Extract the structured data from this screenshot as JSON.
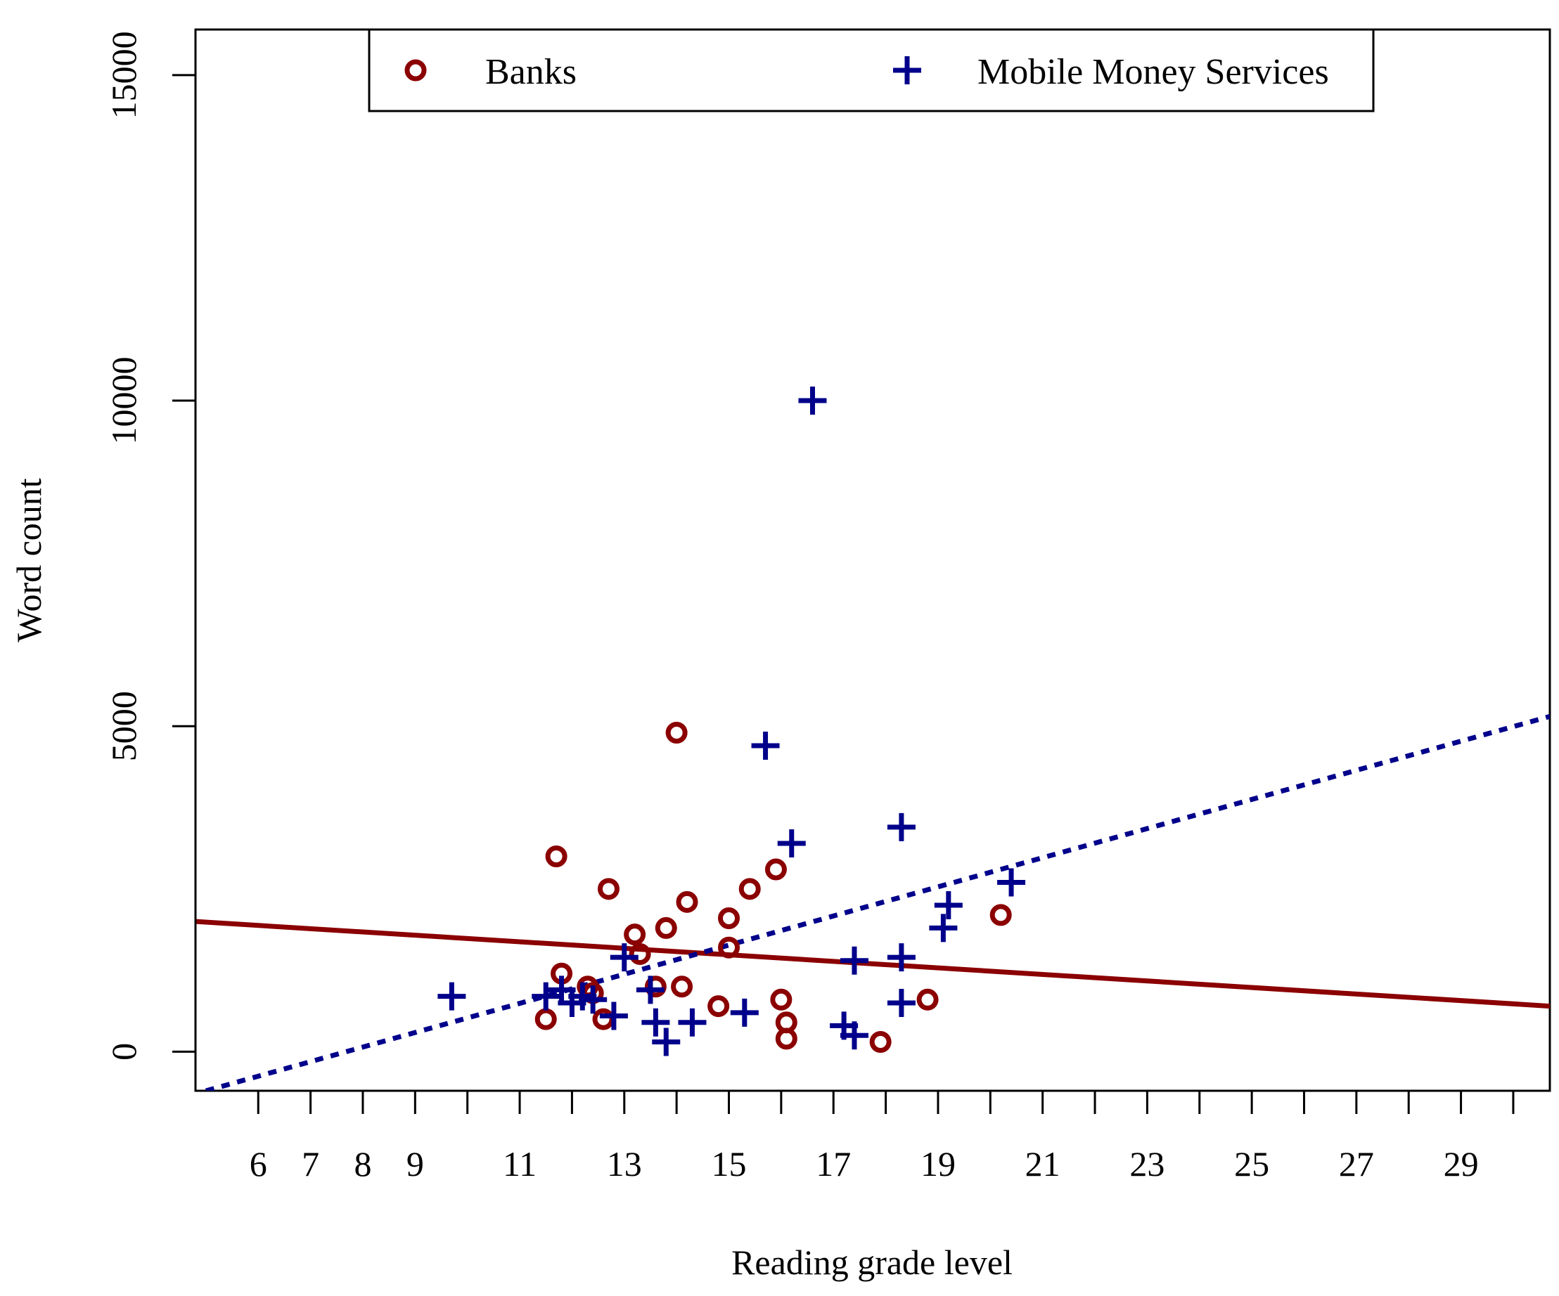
{
  "chart_data": {
    "type": "scatter",
    "title": "",
    "xlabel": "Reading grade level",
    "ylabel": "Word count",
    "xlim": [
      4.8,
      30.7
    ],
    "ylim": [
      -600,
      15700
    ],
    "x_ticks": [
      6,
      7,
      8,
      9,
      11,
      13,
      15,
      17,
      19,
      21,
      23,
      25,
      27,
      29
    ],
    "x_tick_marks": [
      6,
      7,
      8,
      9,
      10,
      11,
      12,
      13,
      14,
      15,
      16,
      17,
      18,
      19,
      20,
      21,
      22,
      23,
      24,
      25,
      26,
      27,
      28,
      29,
      30
    ],
    "y_ticks": [
      0,
      5000,
      10000,
      15000
    ],
    "y_tick_labels": [
      "0",
      "5000",
      "10000",
      "15000"
    ],
    "legend_position": "top",
    "series": [
      {
        "name": "Banks",
        "marker": "circle",
        "color": "#8B0000",
        "points": [
          [
            11.5,
            500
          ],
          [
            11.7,
            3000
          ],
          [
            11.8,
            1200
          ],
          [
            12.3,
            1000
          ],
          [
            12.4,
            900
          ],
          [
            12.6,
            500
          ],
          [
            12.7,
            2500
          ],
          [
            13.2,
            1800
          ],
          [
            13.3,
            1500
          ],
          [
            13.6,
            1000
          ],
          [
            13.8,
            1900
          ],
          [
            14.0,
            4900
          ],
          [
            14.1,
            1000
          ],
          [
            14.2,
            2300
          ],
          [
            14.8,
            700
          ],
          [
            15.0,
            1600
          ],
          [
            15.0,
            2050
          ],
          [
            15.4,
            2500
          ],
          [
            15.9,
            2800
          ],
          [
            16.0,
            800
          ],
          [
            16.1,
            450
          ],
          [
            16.1,
            200
          ],
          [
            17.9,
            150
          ],
          [
            18.8,
            800
          ],
          [
            20.2,
            2100
          ]
        ],
        "trend_line": {
          "style": "solid",
          "x": [
            4.8,
            30.7
          ],
          "y": [
            2000,
            700
          ]
        }
      },
      {
        "name": "Mobile Money Services",
        "marker": "plus",
        "color": "#00008B",
        "points": [
          [
            9.7,
            850
          ],
          [
            11.5,
            850
          ],
          [
            11.8,
            950
          ],
          [
            12.0,
            750
          ],
          [
            12.2,
            850
          ],
          [
            12.4,
            800
          ],
          [
            12.8,
            550
          ],
          [
            13.0,
            1450
          ],
          [
            13.5,
            950
          ],
          [
            13.6,
            450
          ],
          [
            13.8,
            150
          ],
          [
            14.3,
            450
          ],
          [
            15.3,
            600
          ],
          [
            15.7,
            4700
          ],
          [
            16.2,
            3200
          ],
          [
            16.6,
            10000
          ],
          [
            17.2,
            400
          ],
          [
            17.4,
            250
          ],
          [
            17.4,
            1400
          ],
          [
            18.3,
            3450
          ],
          [
            18.3,
            1450
          ],
          [
            18.3,
            750
          ],
          [
            19.1,
            1900
          ],
          [
            19.2,
            2250
          ],
          [
            20.4,
            2600
          ]
        ],
        "trend_line": {
          "style": "dashed",
          "x": [
            5.0,
            30.7
          ],
          "y": [
            -600,
            5150
          ]
        }
      }
    ]
  }
}
